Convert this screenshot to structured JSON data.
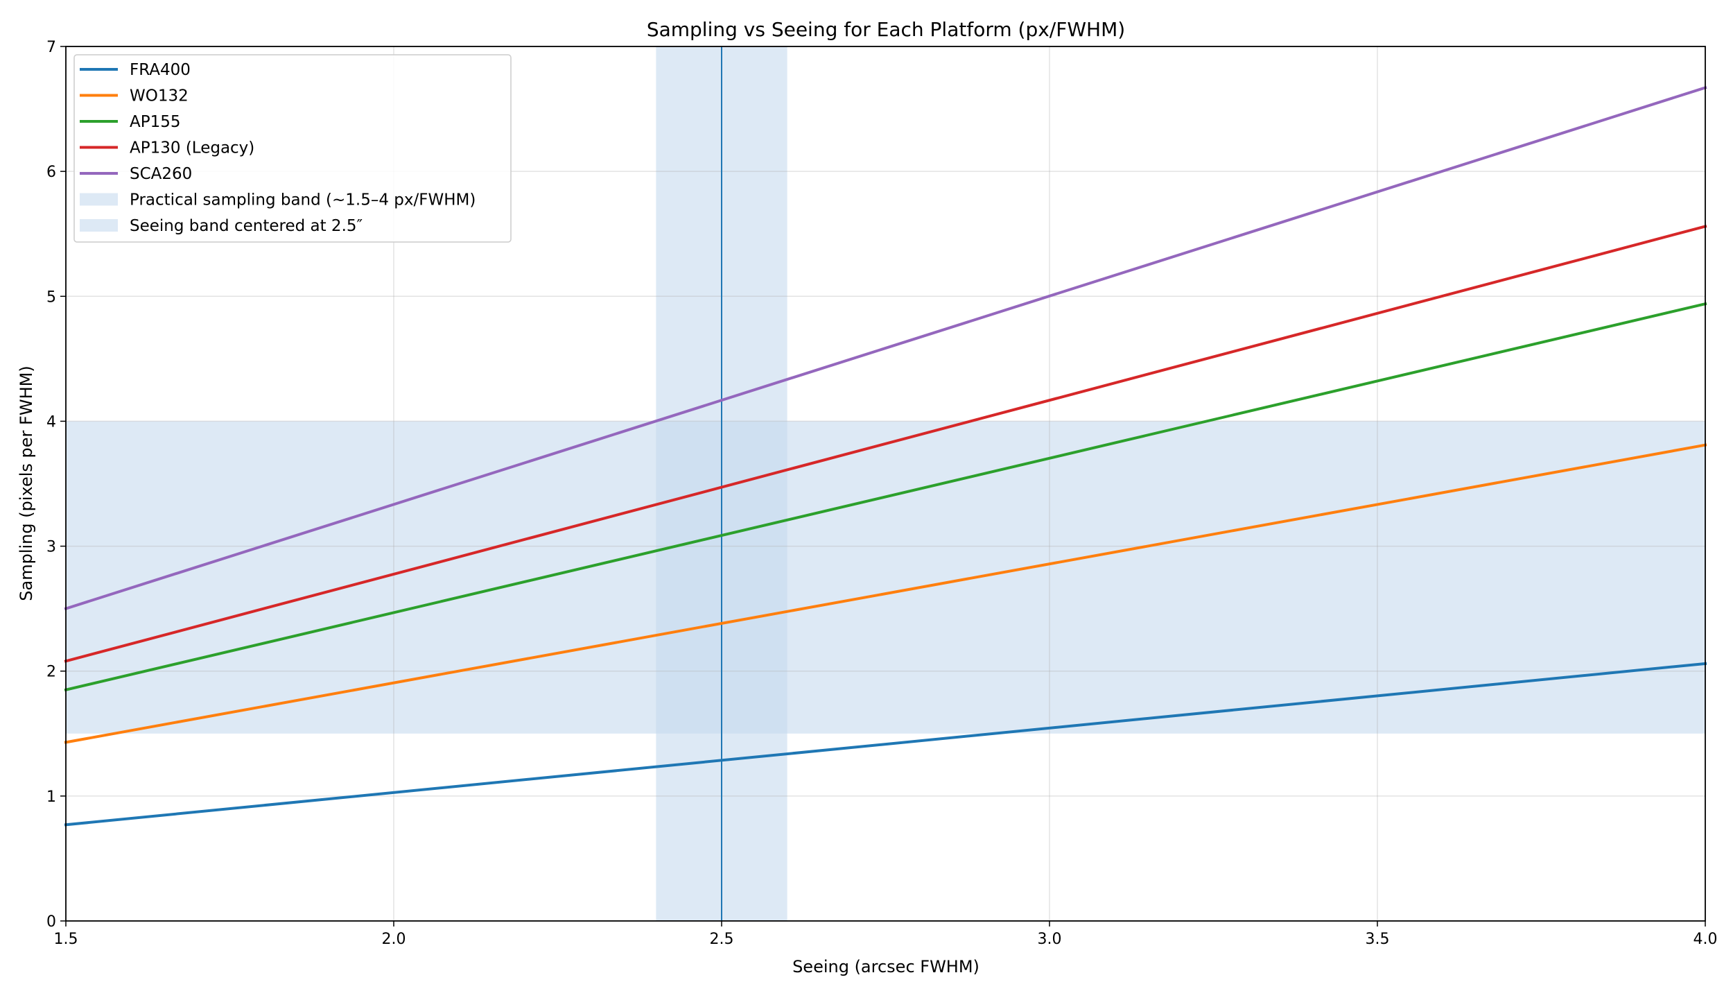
{
  "chart_data": {
    "type": "line",
    "title": "Sampling vs Seeing for Each Platform (px/FWHM)",
    "xlabel": "Seeing (arcsec FWHM)",
    "ylabel": "Sampling (pixels per FWHM)",
    "xlim": [
      1.5,
      4.0
    ],
    "ylim": [
      0,
      7
    ],
    "x_ticks": [
      "1.5",
      "2.0",
      "2.5",
      "3.0",
      "3.5",
      "4.0"
    ],
    "y_ticks": [
      "0",
      "1",
      "2",
      "3",
      "4",
      "5",
      "6",
      "7"
    ],
    "grid": true,
    "legend_position": "upper-left",
    "x": [
      1.5,
      4.0
    ],
    "series": [
      {
        "name": "FRA400",
        "color": "#1f77b4",
        "values": [
          0.77,
          2.06
        ]
      },
      {
        "name": "WO132",
        "color": "#ff7f0e",
        "values": [
          1.43,
          3.81
        ]
      },
      {
        "name": "AP155",
        "color": "#2ca02c",
        "values": [
          1.85,
          4.94
        ]
      },
      {
        "name": "AP130 (Legacy)",
        "color": "#d62728",
        "values": [
          2.08,
          5.56
        ]
      },
      {
        "name": "SCA260",
        "color": "#9467bd",
        "values": [
          2.5,
          6.67
        ]
      }
    ],
    "bands": [
      {
        "name": "Practical sampling band (~1.5–4 px/FWHM)",
        "orientation": "horizontal",
        "from": 1.5,
        "to": 4.0,
        "color": "#c6dbef"
      },
      {
        "name": "Seeing band centered at 2.5″",
        "orientation": "vertical",
        "from": 2.4,
        "to": 2.6,
        "color": "#c6dbef"
      }
    ],
    "reference_line": {
      "orientation": "vertical",
      "x": 2.5,
      "color": "#1f77b4"
    }
  }
}
